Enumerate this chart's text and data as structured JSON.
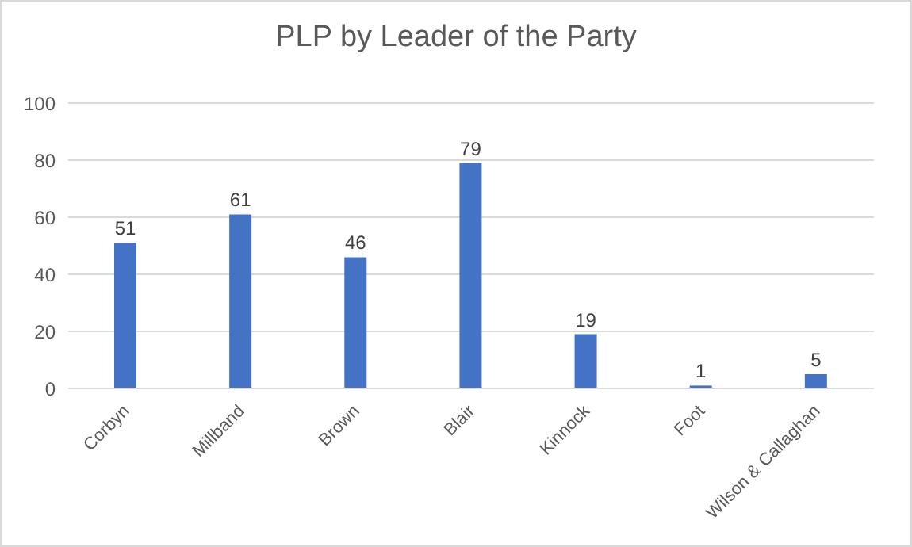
{
  "chart_data": {
    "type": "bar",
    "title": "PLP by Leader of the Party",
    "categories": [
      "Corbyn",
      "Millband",
      "Brown",
      "Blair",
      "Kinnock",
      "Foot",
      "Wilson & Callaghan"
    ],
    "values": [
      51,
      61,
      46,
      79,
      19,
      1,
      5
    ],
    "color": "#4472c4",
    "ylim": [
      0,
      100
    ],
    "yticks": [
      0,
      20,
      40,
      60,
      80,
      100
    ],
    "grid": "y",
    "data_labels": true,
    "legend": false
  }
}
